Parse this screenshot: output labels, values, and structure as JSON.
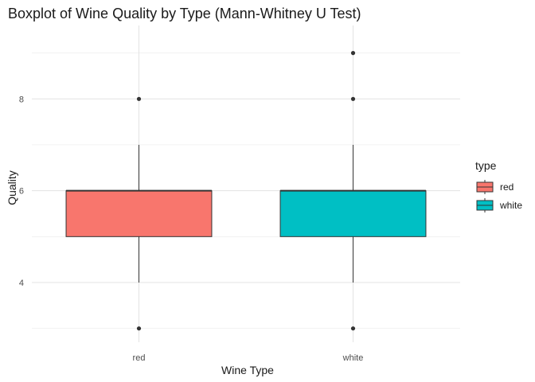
{
  "chart_data": {
    "type": "boxplot",
    "title": "Boxplot of Wine Quality by Type (Mann-Whitney U Test)",
    "xlabel": "Wine Type",
    "ylabel": "Quality",
    "categories": [
      "red",
      "white"
    ],
    "ylim": [
      2.7,
      9.6
    ],
    "y_ticks": [
      4,
      6,
      8
    ],
    "grid": true,
    "legend": {
      "title": "type",
      "position": "right",
      "entries": [
        "red",
        "white"
      ]
    },
    "colors": {
      "red": "#F8766D",
      "white": "#00BFC4"
    },
    "boxes": [
      {
        "category": "red",
        "min": 4,
        "q1": 5,
        "median": 6,
        "q3": 6,
        "max": 7,
        "outliers": [
          3,
          8
        ]
      },
      {
        "category": "white",
        "min": 4,
        "q1": 5,
        "median": 6,
        "q3": 6,
        "max": 7,
        "outliers": [
          3,
          8,
          9
        ]
      }
    ]
  }
}
